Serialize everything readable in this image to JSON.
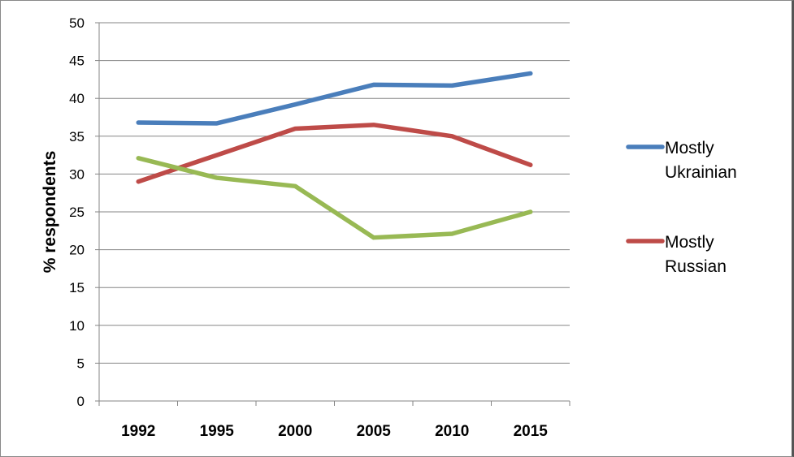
{
  "chart_data": {
    "type": "line",
    "title": "",
    "xlabel": "",
    "ylabel": "% respondents",
    "categories": [
      "1992",
      "1995",
      "2000",
      "2005",
      "2010",
      "2015"
    ],
    "ylim": [
      0,
      50
    ],
    "yticks": [
      0,
      5,
      10,
      15,
      20,
      25,
      30,
      35,
      40,
      45,
      50
    ],
    "grid": true,
    "legend_position": "right",
    "series": [
      {
        "name_line1": "Mostly",
        "name_line2": "Ukrainian",
        "name": "Mostly Ukrainian",
        "color": "#4a7ebb",
        "values": [
          36.8,
          36.7,
          39.2,
          41.8,
          41.7,
          43.3
        ],
        "in_legend": true
      },
      {
        "name_line1": "Mostly",
        "name_line2": "Russian",
        "name": "Mostly Russian",
        "color": "#be4b48",
        "values": [
          29.0,
          32.5,
          36.0,
          36.5,
          35.0,
          31.2
        ],
        "in_legend": true
      },
      {
        "name": "",
        "color": "#98b954",
        "values": [
          32.1,
          29.5,
          28.4,
          21.6,
          22.1,
          25.0
        ],
        "in_legend": false
      }
    ]
  }
}
